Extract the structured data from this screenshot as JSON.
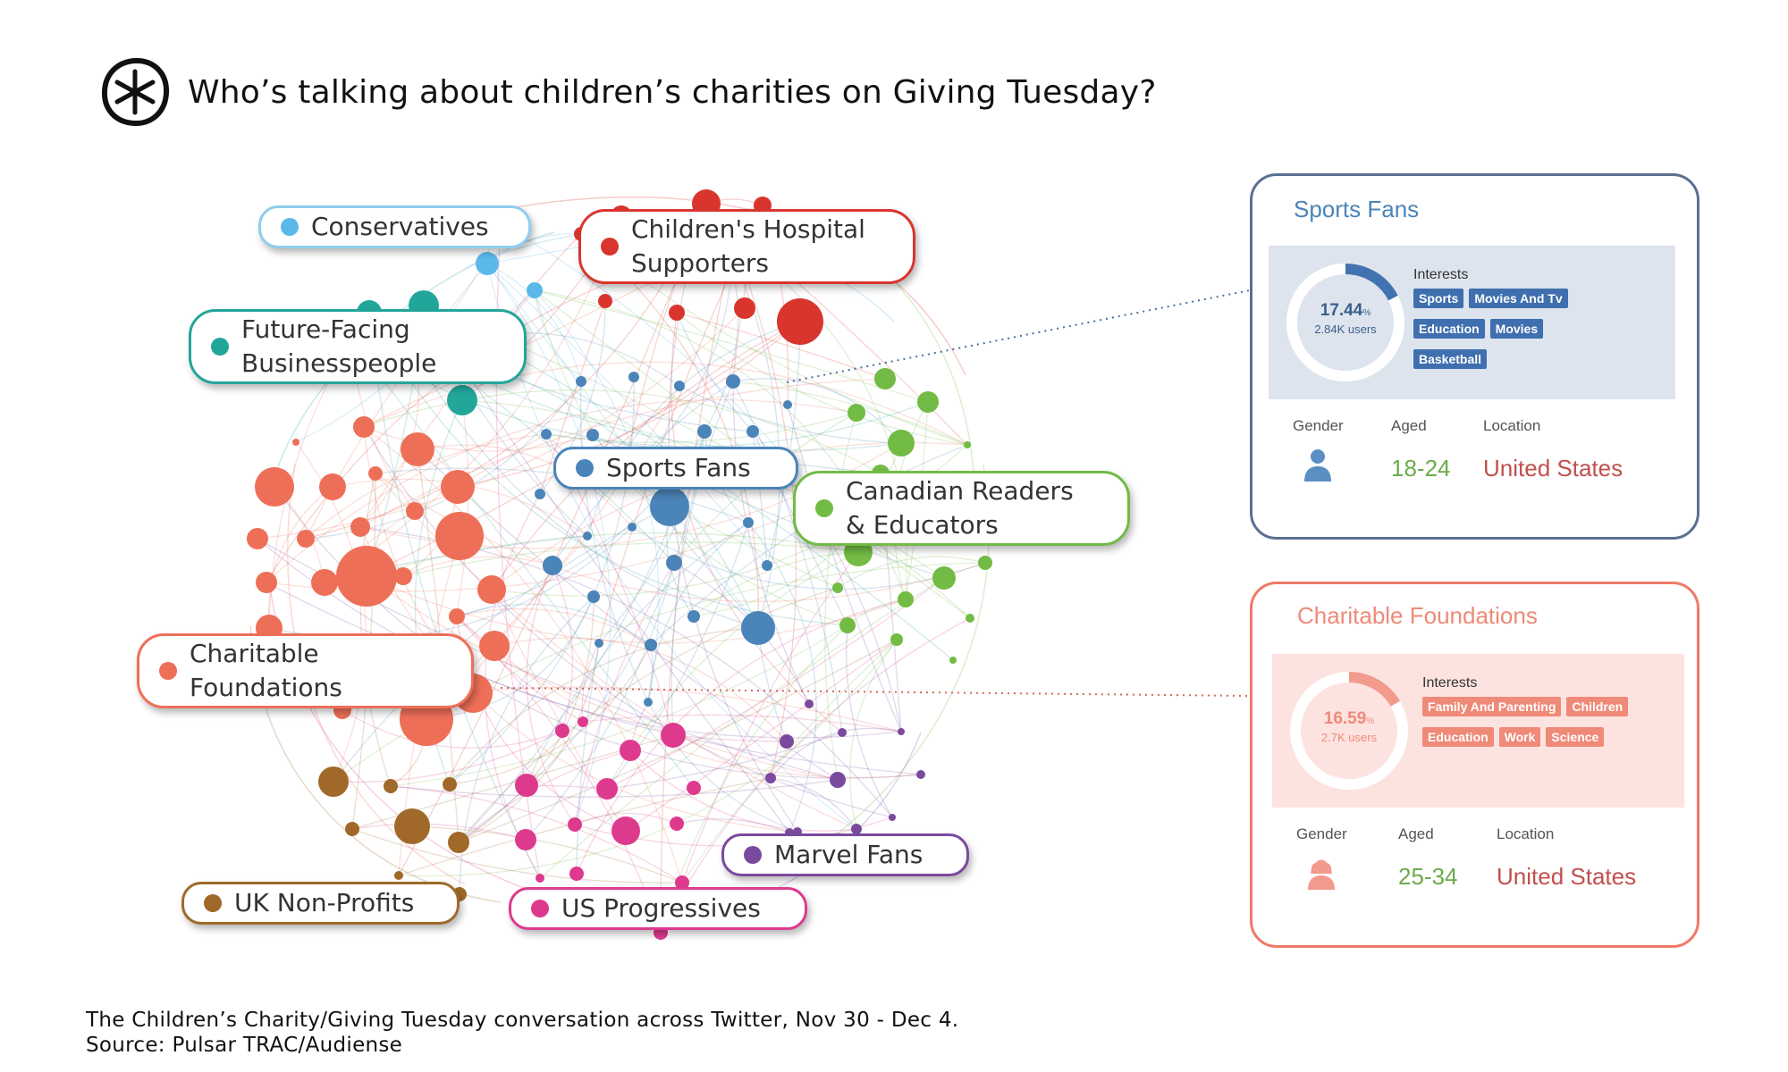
{
  "title": "Who’s talking about children’s charities on Giving Tuesday?",
  "logo_icon": "asterisk-circle-icon",
  "groups": [
    {
      "id": "conservatives",
      "label_lines": [
        "Conservatives"
      ],
      "color": "#5bb8ea"
    },
    {
      "id": "hospital",
      "label_lines": [
        "Children's Hospital",
        "Supporters"
      ],
      "color": "#d9352e"
    },
    {
      "id": "future",
      "label_lines": [
        "Future-Facing",
        "Businesspeople"
      ],
      "color": "#23a69a"
    },
    {
      "id": "sports",
      "label_lines": [
        "Sports Fans"
      ],
      "color": "#4b84b8"
    },
    {
      "id": "canadian",
      "label_lines": [
        "Canadian Readers",
        "& Educators"
      ],
      "color": "#72bb44"
    },
    {
      "id": "charitable",
      "label_lines": [
        "Charitable",
        "Foundations"
      ],
      "color": "#ee6f58"
    },
    {
      "id": "marvel",
      "label_lines": [
        "Marvel Fans"
      ],
      "color": "#7a4a9e"
    },
    {
      "id": "uk",
      "label_lines": [
        "UK Non-Profits"
      ],
      "color": "#a0692a"
    },
    {
      "id": "us",
      "label_lines": [
        "US Progressives"
      ],
      "color": "#dd3a8e"
    }
  ],
  "cards": [
    {
      "id": "sports-card",
      "title": "Sports Fans",
      "accent": "#4b84b8",
      "panel_bg": "#dde4ee",
      "percent": "17.44",
      "percent_unit": "%",
      "percent_value": 17.44,
      "users": "2.84K users",
      "interests_label": "Interests",
      "interests": [
        "Sports",
        "Movies And Tv",
        "Education",
        "Movies",
        "Basketball"
      ],
      "gender_label": "Gender",
      "aged_label": "Aged",
      "aged": "18-24",
      "location_label": "Location",
      "location": "United States",
      "gender_icon": "male-person-icon"
    },
    {
      "id": "charitable-card",
      "title": "Charitable Foundations",
      "accent": "#ee8a78",
      "panel_bg": "#fde3e0",
      "percent": "16.59",
      "percent_unit": "%",
      "percent_value": 16.59,
      "users": "2.7K users",
      "interests_label": "Interests",
      "interests": [
        "Family And Parenting",
        "Children",
        "Education",
        "Work",
        "Science"
      ],
      "gender_label": "Gender",
      "aged_label": "Aged",
      "aged": "25-34",
      "location_label": "Location",
      "location": "United States",
      "gender_icon": "female-person-icon"
    }
  ],
  "footer": {
    "line1": "The Children’s Charity/Giving Tuesday conversation across Twitter, Nov 30 - Dec 4.",
    "line2": "Source: Pulsar TRAC/Audiense"
  }
}
